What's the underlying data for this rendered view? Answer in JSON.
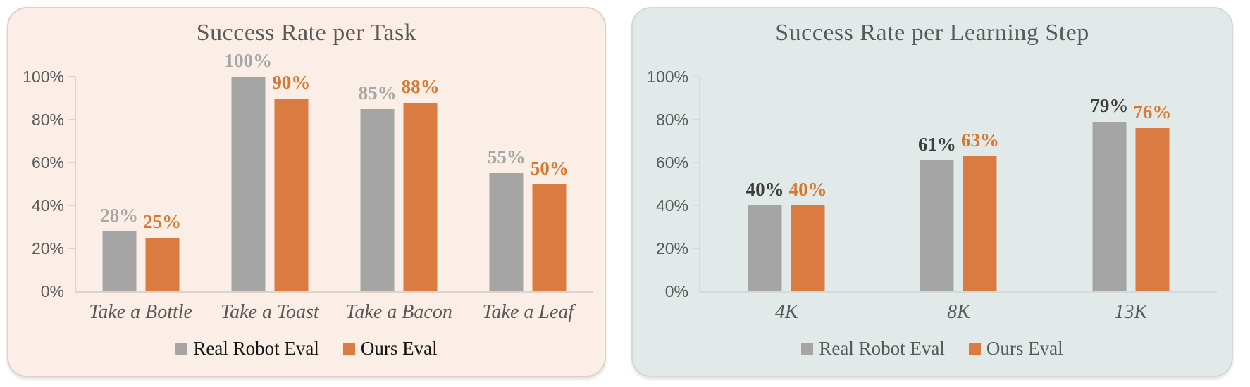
{
  "chart_data": [
    {
      "type": "bar",
      "title": "Success Rate per Task",
      "categories": [
        "Take a Bottle",
        "Take a Toast",
        "Take a Bacon",
        "Take a Leaf"
      ],
      "series": [
        {
          "name": "Real Robot Eval",
          "values": [
            28,
            100,
            85,
            55
          ],
          "labels": [
            "28%",
            "100%",
            "85%",
            "55%"
          ],
          "color": "#a5a5a5",
          "label_color": "#a6a6a6"
        },
        {
          "name": "Ours Eval",
          "values": [
            25,
            90,
            88,
            50
          ],
          "labels": [
            "25%",
            "90%",
            "88%",
            "50%"
          ],
          "color": "#da7b41",
          "label_color": "#d8772f"
        }
      ],
      "xlabel": "",
      "ylabel": "",
      "ylim": [
        0,
        100
      ],
      "yticks": [
        "0%",
        "20%",
        "40%",
        "60%",
        "80%",
        "100%"
      ],
      "grid": false,
      "legend_position": "bottom",
      "panel_background": "#faeee6",
      "panel_border": "#ddd2c8",
      "axis_color": "#ddd3cb",
      "title_color": "#595959",
      "tick_text_color": "#595959",
      "category_text_color": "#595959",
      "legend_text_color": "#141414"
    },
    {
      "type": "bar",
      "title": "Success Rate per Learning Step",
      "categories": [
        "4K",
        "8K",
        "13K"
      ],
      "series": [
        {
          "name": "Real Robot Eval",
          "values": [
            40,
            61,
            79
          ],
          "labels": [
            "40%",
            "61%",
            "79%"
          ],
          "color": "#a5a5a5",
          "label_color": "#3d3d3d"
        },
        {
          "name": "Ours Eval",
          "values": [
            40,
            63,
            76
          ],
          "labels": [
            "40%",
            "63%",
            "76%"
          ],
          "color": "#da7b41",
          "label_color": "#d8772f"
        }
      ],
      "xlabel": "",
      "ylabel": "",
      "ylim": [
        0,
        100
      ],
      "yticks": [
        "0%",
        "20%",
        "40%",
        "60%",
        "80%",
        "100%"
      ],
      "grid": false,
      "legend_position": "bottom",
      "panel_background": "#e1eae9",
      "panel_border": "#d2d9d8",
      "axis_color": "#d3dbda",
      "title_color": "#595959",
      "tick_text_color": "#595959",
      "category_text_color": "#595959",
      "legend_text_color": "#595959"
    }
  ]
}
